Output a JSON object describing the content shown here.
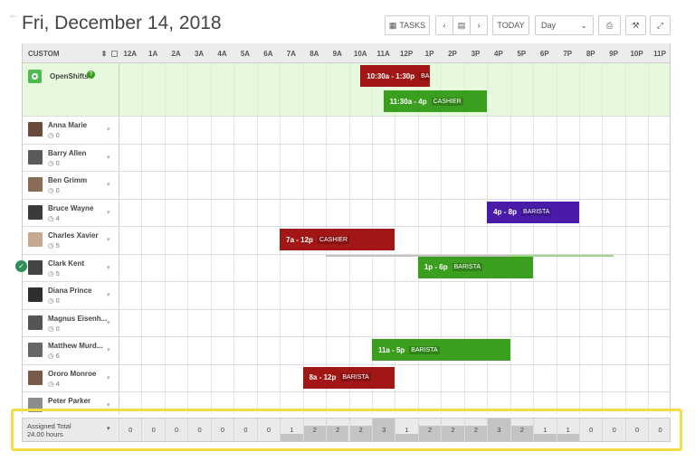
{
  "header": {
    "back_icon": "arrow-left-icon",
    "title": "Fri, December 14, 2018",
    "tasks_label": "TASKS",
    "today_label": "TODAY",
    "view_select": "Day"
  },
  "table": {
    "custom_label": "CUSTOM",
    "hours": [
      "12A",
      "1A",
      "2A",
      "3A",
      "4A",
      "5A",
      "6A",
      "7A",
      "8A",
      "9A",
      "10A",
      "11A",
      "12P",
      "1P",
      "2P",
      "3P",
      "4P",
      "5P",
      "6P",
      "7P",
      "8P",
      "9P",
      "10P",
      "11P"
    ]
  },
  "open_shifts": {
    "label": "OpenShifts",
    "shifts": [
      {
        "time": "10:30a - 1:30p",
        "position": "BA",
        "color": "#a31616"
      },
      {
        "time": "11:30a - 4p",
        "position": "CASHIER",
        "color": "#3a9e1e"
      }
    ]
  },
  "employees": [
    {
      "name": "Anna Marie",
      "hours": "0"
    },
    {
      "name": "Barry Allen",
      "hours": "0"
    },
    {
      "name": "Ben Grimm",
      "hours": "0"
    },
    {
      "name": "Bruce Wayne",
      "hours": "4"
    },
    {
      "name": "Charles Xavier",
      "hours": "5"
    },
    {
      "name": "Clark Kent",
      "hours": "5"
    },
    {
      "name": "Diana Prince",
      "hours": "0"
    },
    {
      "name": "Magnus Eisenh...",
      "hours": "0"
    },
    {
      "name": "Matthew Murd...",
      "hours": "6"
    },
    {
      "name": "Ororo Monroe",
      "hours": "4"
    },
    {
      "name": "Peter Parker",
      "hours": ""
    }
  ],
  "shifts": [
    {
      "time": "4p - 8p",
      "position": "BARISTA",
      "color": "#4a1aa8"
    },
    {
      "time": "7a - 12p",
      "position": "CASHIER",
      "color": "#a31616"
    },
    {
      "time": "1p - 6p",
      "position": "BARISTA",
      "color": "#3a9e1e"
    },
    {
      "time": "11a - 5p",
      "position": "BARISTA",
      "color": "#3a9e1e"
    },
    {
      "time": "8a - 12p",
      "position": "BARISTA",
      "color": "#a31616"
    }
  ],
  "footer": {
    "label": "Assigned Total",
    "total": "24.00 hours",
    "counts": [
      "0",
      "0",
      "0",
      "0",
      "0",
      "0",
      "0",
      "1",
      "2",
      "2",
      "2",
      "3",
      "1",
      "2",
      "2",
      "2",
      "3",
      "2",
      "1",
      "1",
      "0",
      "0",
      "0",
      "0"
    ]
  }
}
